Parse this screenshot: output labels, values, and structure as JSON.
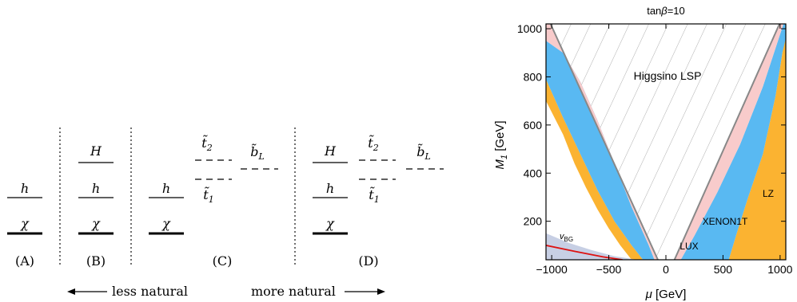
{
  "spectrum": {
    "labels": {
      "h": "h",
      "chi": "χ",
      "H": "H",
      "t2": "t̃",
      "t2_sub": "2",
      "t1": "t̃",
      "t1_sub": "1",
      "bL": "b̃",
      "bL_sub": "L"
    },
    "panels": [
      "(A)",
      "(B)",
      "(C)",
      "(D)"
    ],
    "less_natural": "less natural",
    "more_natural": "more natural"
  },
  "chart_data": {
    "type": "area",
    "title": "tanβ=10",
    "title_prefix": "tan",
    "title_symbol": "β",
    "title_suffix": "=10",
    "xlabel_symbol": "μ",
    "xlabel_unit": " [GeV]",
    "ylabel_symbol": "M",
    "ylabel_sub": "1",
    "ylabel_unit": " [GeV]",
    "xlim": [
      -1050,
      1050
    ],
    "ylim": [
      40,
      1020
    ],
    "xticks": [
      -1000,
      -500,
      0,
      500,
      1000
    ],
    "xtick_labels": [
      "−1000",
      "−500",
      "0",
      "500",
      "1000"
    ],
    "yticks": [
      200,
      400,
      600,
      800,
      1000
    ],
    "ytick_labels": [
      "200",
      "400",
      "600",
      "800",
      "1000"
    ],
    "colors": {
      "lz": "#fbb331",
      "xenon1t": "#59b9f2",
      "lux": "#f8cbcb",
      "vbg": "#c7cfe4",
      "vbg_line": "#dd1111",
      "boundary": "#888888"
    },
    "regions": [
      {
        "name": "LZ",
        "label": "LZ",
        "left": [
          [
            -1050,
            700
          ],
          [
            -900,
            560
          ],
          [
            -800,
            440
          ],
          [
            -700,
            340
          ],
          [
            -600,
            250
          ],
          [
            -500,
            170
          ],
          [
            -400,
            100
          ],
          [
            -300,
            40
          ],
          [
            -200,
            40
          ],
          [
            -300,
            100
          ],
          [
            -450,
            200
          ],
          [
            -600,
            330
          ],
          [
            -750,
            480
          ],
          [
            -900,
            630
          ],
          [
            -1050,
            790
          ]
        ],
        "right": [
          [
            1050,
            1020
          ],
          [
            1050,
            40
          ],
          [
            550,
            40
          ],
          [
            620,
            150
          ],
          [
            720,
            300
          ],
          [
            850,
            480
          ],
          [
            960,
            720
          ],
          [
            1020,
            900
          ]
        ]
      },
      {
        "name": "XENON1T",
        "label": "XENON1T",
        "left": [
          [
            -1050,
            950
          ],
          [
            -1050,
            790
          ],
          [
            -900,
            630
          ],
          [
            -750,
            480
          ],
          [
            -600,
            330
          ],
          [
            -450,
            200
          ],
          [
            -300,
            100
          ],
          [
            -200,
            40
          ],
          [
            -100,
            40
          ],
          [
            -150,
            100
          ],
          [
            -300,
            260
          ],
          [
            -450,
            440
          ],
          [
            -600,
            620
          ],
          [
            -750,
            780
          ],
          [
            -900,
            900
          ]
        ],
        "right": [
          [
            130,
            40
          ],
          [
            550,
            40
          ],
          [
            620,
            150
          ],
          [
            720,
            300
          ],
          [
            850,
            480
          ],
          [
            960,
            720
          ],
          [
            1020,
            900
          ],
          [
            1050,
            960
          ],
          [
            1050,
            1020
          ],
          [
            1030,
            1020
          ],
          [
            850,
            760
          ],
          [
            650,
            520
          ],
          [
            450,
            320
          ],
          [
            250,
            140
          ]
        ]
      },
      {
        "name": "LUX",
        "label": "LUX",
        "left": [
          [
            -1050,
            1020
          ],
          [
            -1050,
            950
          ],
          [
            -900,
            900
          ],
          [
            -750,
            780
          ],
          [
            -600,
            620
          ],
          [
            -450,
            440
          ],
          [
            -300,
            260
          ],
          [
            -150,
            100
          ],
          [
            -100,
            40
          ],
          [
            -70,
            40
          ],
          [
            -1010,
            1020
          ]
        ],
        "right": [
          [
            75,
            40
          ],
          [
            130,
            40
          ],
          [
            250,
            140
          ],
          [
            450,
            320
          ],
          [
            650,
            520
          ],
          [
            850,
            760
          ],
          [
            1030,
            1020
          ],
          [
            995,
            1020
          ]
        ]
      },
      {
        "name": "vBG",
        "label": "v",
        "label_sub": "BG",
        "polygon": [
          [
            -1050,
            40
          ],
          [
            -1050,
            150
          ],
          [
            -850,
            110
          ],
          [
            -650,
            80
          ],
          [
            -450,
            55
          ],
          [
            -250,
            40
          ]
        ],
        "line": [
          [
            -1050,
            100
          ],
          [
            -800,
            75
          ],
          [
            -550,
            52
          ],
          [
            -380,
            40
          ]
        ]
      }
    ],
    "higgsino_label": "Higgsino LSP",
    "boundary_left": [
      [
        -1010,
        1020
      ],
      [
        -70,
        40
      ]
    ],
    "boundary_right": [
      [
        75,
        40
      ],
      [
        995,
        1020
      ]
    ]
  }
}
